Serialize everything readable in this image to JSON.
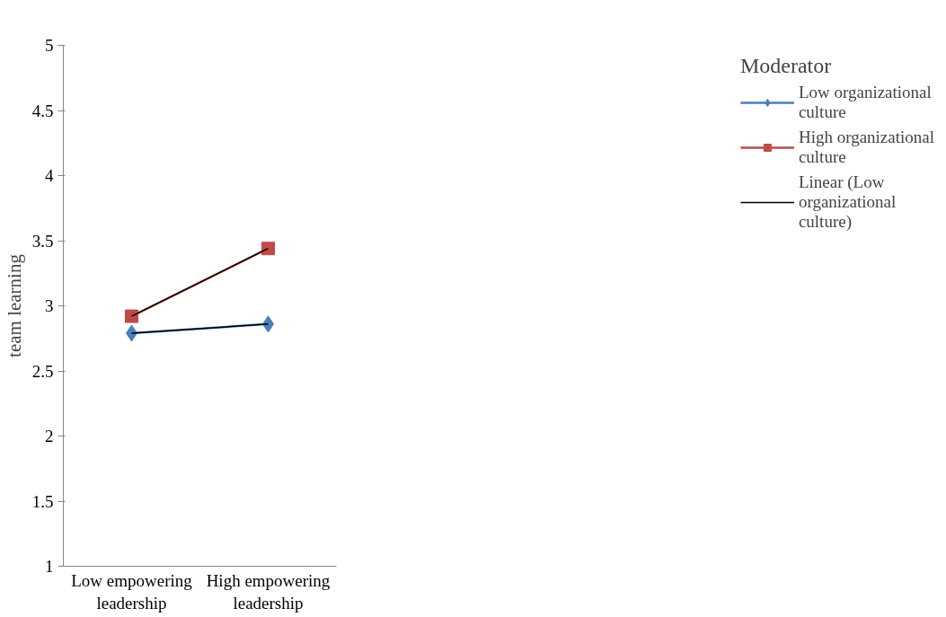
{
  "chart_data": {
    "type": "line",
    "ylabel": "team learning",
    "legend_title": "Moderator",
    "categories": [
      "Low empowering leadership",
      "High empowering leadership"
    ],
    "series": [
      {
        "name": "Low organizational culture",
        "color": "#4a7ebb",
        "marker": "diamond",
        "values": [
          2.79,
          2.86
        ]
      },
      {
        "name": "High organizational culture",
        "color": "#be4b48",
        "marker": "square",
        "values": [
          2.92,
          3.44
        ]
      },
      {
        "name": "Linear (Low organizational culture)",
        "color": "#000000",
        "marker": "none",
        "x": [
          "Low empowering leadership",
          "High empowering leadership"
        ],
        "values": [
          2.79,
          2.86
        ]
      },
      {
        "color": "#000000",
        "marker": "none",
        "x": [
          "Low empowering leadership",
          "High empowering leadership"
        ],
        "values": [
          2.92,
          3.44
        ]
      }
    ],
    "ylim": [
      1,
      5
    ],
    "yticks": [
      1,
      1.5,
      2,
      2.5,
      3,
      3.5,
      4,
      4.5,
      5
    ],
    "grid": false,
    "legend": "right"
  }
}
